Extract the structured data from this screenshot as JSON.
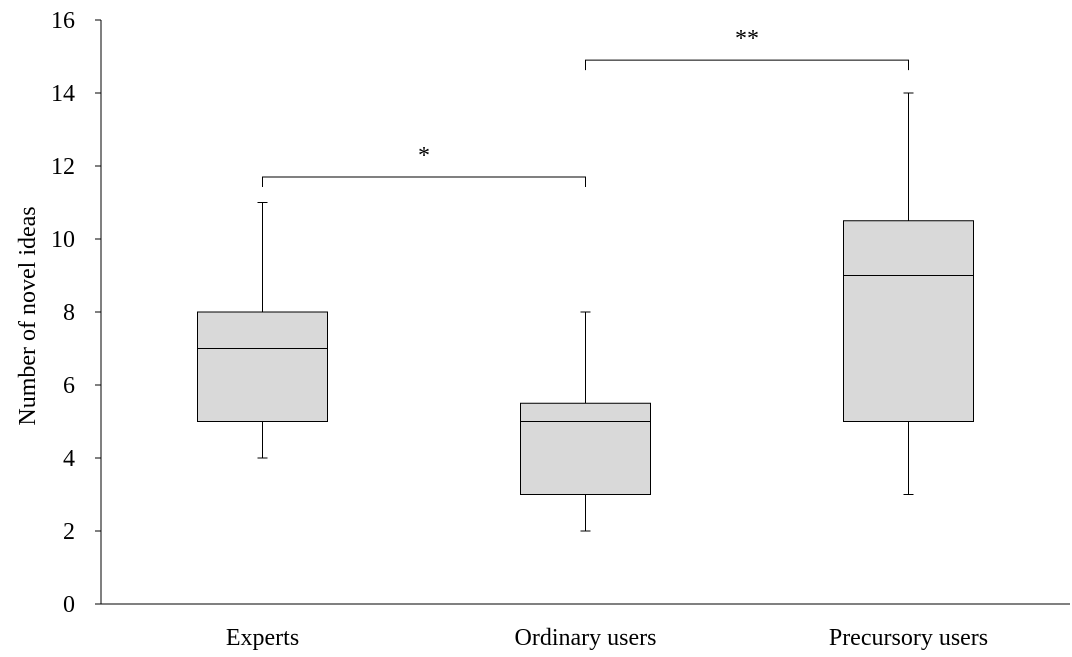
{
  "chart_data": {
    "type": "boxplot",
    "title": "",
    "xlabel": "",
    "ylabel": "Number of novel ideas",
    "ylim": [
      0,
      16
    ],
    "yticks": [
      0,
      2,
      4,
      6,
      8,
      10,
      12,
      14,
      16
    ],
    "categories": [
      "Experts",
      "Ordinary users",
      "Precursory users"
    ],
    "boxes": [
      {
        "category": "Experts",
        "min": 4,
        "q1": 5,
        "median": 7,
        "q3": 8,
        "max": 11
      },
      {
        "category": "Ordinary users",
        "min": 2,
        "q1": 3,
        "median": 5,
        "q3": 5.5,
        "max": 8
      },
      {
        "category": "Precursory users",
        "min": 3,
        "q1": 5,
        "median": 9,
        "q3": 10.5,
        "max": 14
      }
    ],
    "box_fill": "#d9d9d9",
    "grid": false,
    "significance": [
      {
        "from": "Experts",
        "to": "Ordinary users",
        "label": "*",
        "y": 11.7
      },
      {
        "from": "Ordinary users",
        "to": "Precursory users",
        "label": "**",
        "y": 14.9
      }
    ]
  }
}
